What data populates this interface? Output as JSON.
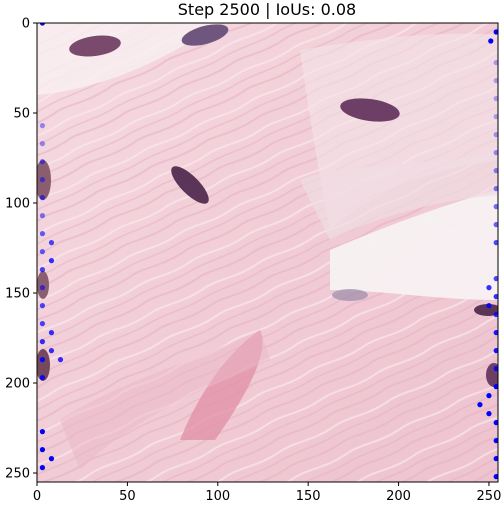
{
  "chart_data": {
    "type": "scatter",
    "title": "Step 2500 | IoUs: 0.08",
    "xlabel": "",
    "ylabel": "",
    "xlim": [
      0,
      255
    ],
    "ylim": [
      255,
      0
    ],
    "y_inverted": true,
    "grid": false,
    "xticks": [
      0,
      50,
      100,
      150,
      200,
      250
    ],
    "yticks": [
      0,
      50,
      100,
      150,
      200,
      250
    ],
    "background": "histology image (H&E stained tissue)",
    "point_color": "#0000ff",
    "series": [
      {
        "points": [
          [
            3,
            0,
            1.0
          ],
          [
            3,
            57,
            0.4
          ],
          [
            3,
            67,
            0.4
          ],
          [
            3,
            77,
            0.5
          ],
          [
            3,
            87,
            0.5
          ],
          [
            3,
            97,
            0.6
          ],
          [
            3,
            107,
            0.5
          ],
          [
            3,
            117,
            0.6
          ],
          [
            3,
            127,
            0.6
          ],
          [
            3,
            137,
            0.7
          ],
          [
            3,
            147,
            0.6
          ],
          [
            3,
            157,
            0.7
          ],
          [
            3,
            167,
            0.7
          ],
          [
            3,
            177,
            0.8
          ],
          [
            3,
            187,
            0.9
          ],
          [
            3,
            197,
            0.9
          ],
          [
            3,
            227,
            1.0
          ],
          [
            3,
            237,
            1.0
          ],
          [
            3,
            247,
            1.0
          ],
          [
            8,
            122,
            0.7
          ],
          [
            8,
            132,
            0.8
          ],
          [
            8,
            172,
            0.8
          ],
          [
            8,
            182,
            0.8
          ],
          [
            8,
            242,
            1.0
          ],
          [
            13,
            187,
            0.8
          ],
          [
            251,
            10,
            1.0
          ],
          [
            254,
            5,
            1.0
          ],
          [
            254,
            22,
            0.3
          ],
          [
            254,
            32,
            0.3
          ],
          [
            254,
            42,
            0.3
          ],
          [
            254,
            52,
            0.3
          ],
          [
            254,
            62,
            0.35
          ],
          [
            254,
            72,
            0.4
          ],
          [
            254,
            82,
            0.45
          ],
          [
            254,
            92,
            0.5
          ],
          [
            254,
            102,
            0.55
          ],
          [
            254,
            112,
            0.6
          ],
          [
            254,
            122,
            0.7
          ],
          [
            254,
            142,
            0.7
          ],
          [
            254,
            152,
            0.8
          ],
          [
            254,
            162,
            0.8
          ],
          [
            254,
            172,
            0.9
          ],
          [
            254,
            182,
            0.9
          ],
          [
            254,
            192,
            0.9
          ],
          [
            254,
            202,
            1.0
          ],
          [
            254,
            222,
            1.0
          ],
          [
            254,
            232,
            1.0
          ],
          [
            254,
            242,
            1.0
          ],
          [
            254,
            252,
            1.0
          ],
          [
            250,
            147,
            0.8
          ],
          [
            250,
            157,
            0.9
          ],
          [
            250,
            207,
            1.0
          ],
          [
            250,
            217,
            1.0
          ],
          [
            245,
            212,
            1.0
          ]
        ]
      }
    ]
  }
}
